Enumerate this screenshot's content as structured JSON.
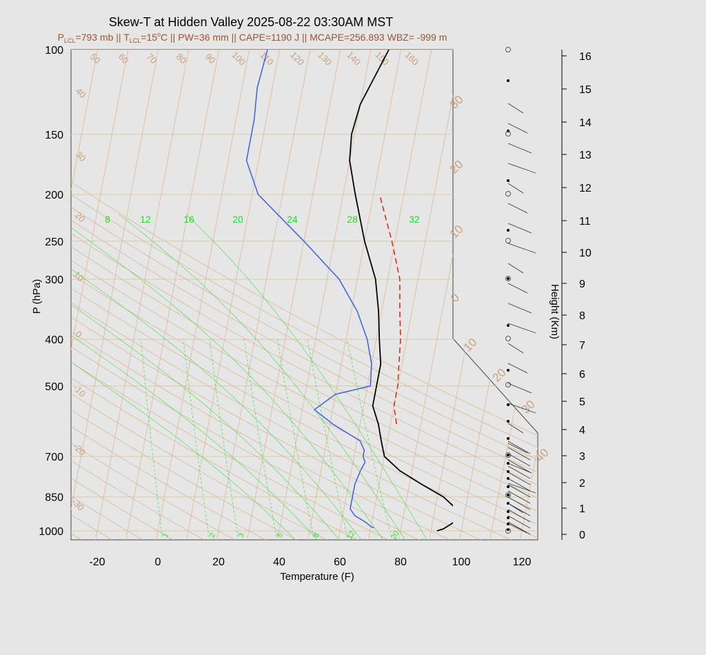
{
  "chart_data": {
    "type": "line",
    "title": "Skew-T at Hidden Valley 2025-08-22 03:30AM MST",
    "subtitle_parts": {
      "p_lcl": "793 mb",
      "t_lcl": "15",
      "pw": "36 mm",
      "cape": "1190 J",
      "mcape": "256.893",
      "wbz": "-999 m"
    },
    "subtitle_text": "Pₗₙₗ=793 mb || Tₗₙₗ=15°C || PW=36 mm || CAPE=1190 J || MCAPE=256.893 WBZ= -999 m",
    "xlabel": "Temperature (F)",
    "ylabel": "P (hPa)",
    "y2label": "Height (Km)",
    "xlim": [
      -28,
      124
    ],
    "ylim": [
      1050,
      100
    ],
    "x_ticks": [
      -20,
      0,
      20,
      40,
      60,
      80,
      100,
      120
    ],
    "p_ticks": [
      100,
      150,
      200,
      250,
      300,
      400,
      500,
      700,
      850,
      1000
    ],
    "height_ticks": [
      0,
      1,
      2,
      3,
      4,
      5,
      6,
      7,
      8,
      9,
      10,
      11,
      12,
      13,
      14,
      15,
      16
    ],
    "series": [
      {
        "key": "temperature",
        "color": "#000000",
        "points": [
          [
            1000,
            92
          ],
          [
            990,
            94
          ],
          [
            960,
            97
          ],
          [
            900,
            97
          ],
          [
            850,
            92
          ],
          [
            800,
            84
          ],
          [
            750,
            76
          ],
          [
            700,
            70
          ],
          [
            650,
            68
          ],
          [
            600,
            66
          ],
          [
            550,
            63
          ],
          [
            500,
            63
          ],
          [
            450,
            63
          ],
          [
            400,
            61
          ],
          [
            350,
            59
          ],
          [
            300,
            56
          ],
          [
            250,
            50
          ],
          [
            200,
            44
          ],
          [
            170,
            40
          ],
          [
            150,
            39
          ],
          [
            130,
            40
          ],
          [
            100,
            46
          ]
        ]
      },
      {
        "key": "dewpoint",
        "color": "#3a5fe0",
        "points": [
          [
            985,
            71
          ],
          [
            980,
            70
          ],
          [
            960,
            68
          ],
          [
            930,
            64
          ],
          [
            900,
            62
          ],
          [
            850,
            62
          ],
          [
            800,
            62
          ],
          [
            750,
            63
          ],
          [
            720,
            64
          ],
          [
            700,
            63
          ],
          [
            680,
            63
          ],
          [
            650,
            61
          ],
          [
            600,
            51
          ],
          [
            560,
            44
          ],
          [
            520,
            50
          ],
          [
            500,
            61
          ],
          [
            450,
            60
          ],
          [
            400,
            57
          ],
          [
            350,
            52
          ],
          [
            300,
            44
          ],
          [
            250,
            30
          ],
          [
            200,
            12
          ],
          [
            170,
            6
          ],
          [
            140,
            6
          ],
          [
            120,
            5
          ],
          [
            100,
            6
          ]
        ]
      },
      {
        "key": "parcel",
        "color": "#dd2200",
        "dashed": true,
        "points": [
          [
            600,
            72
          ],
          [
            550,
            70
          ],
          [
            500,
            70
          ],
          [
            450,
            69
          ],
          [
            400,
            68
          ],
          [
            350,
            66
          ],
          [
            300,
            64
          ],
          [
            250,
            59
          ],
          [
            200,
            52
          ]
        ]
      }
    ],
    "dry_adiabat_labels": [
      "50",
      "60",
      "70",
      "80",
      "90",
      "100",
      "110",
      "120",
      "130",
      "140",
      "150",
      "160",
      "40",
      "30",
      "20",
      "10",
      "0",
      "-10",
      "-20",
      "-30"
    ],
    "mixing_ratio_bottom": [
      "1",
      "2",
      "3",
      "5",
      "8",
      "12",
      "20"
    ],
    "mixing_ratio_top": [
      "8",
      "12",
      "16",
      "20",
      "24",
      "28",
      "32"
    ],
    "wet_bulb_labels": [
      "30",
      "20",
      "10",
      "0",
      "10",
      "20",
      "30",
      "40"
    ],
    "wind_barb_column": "wind barbs by height"
  }
}
